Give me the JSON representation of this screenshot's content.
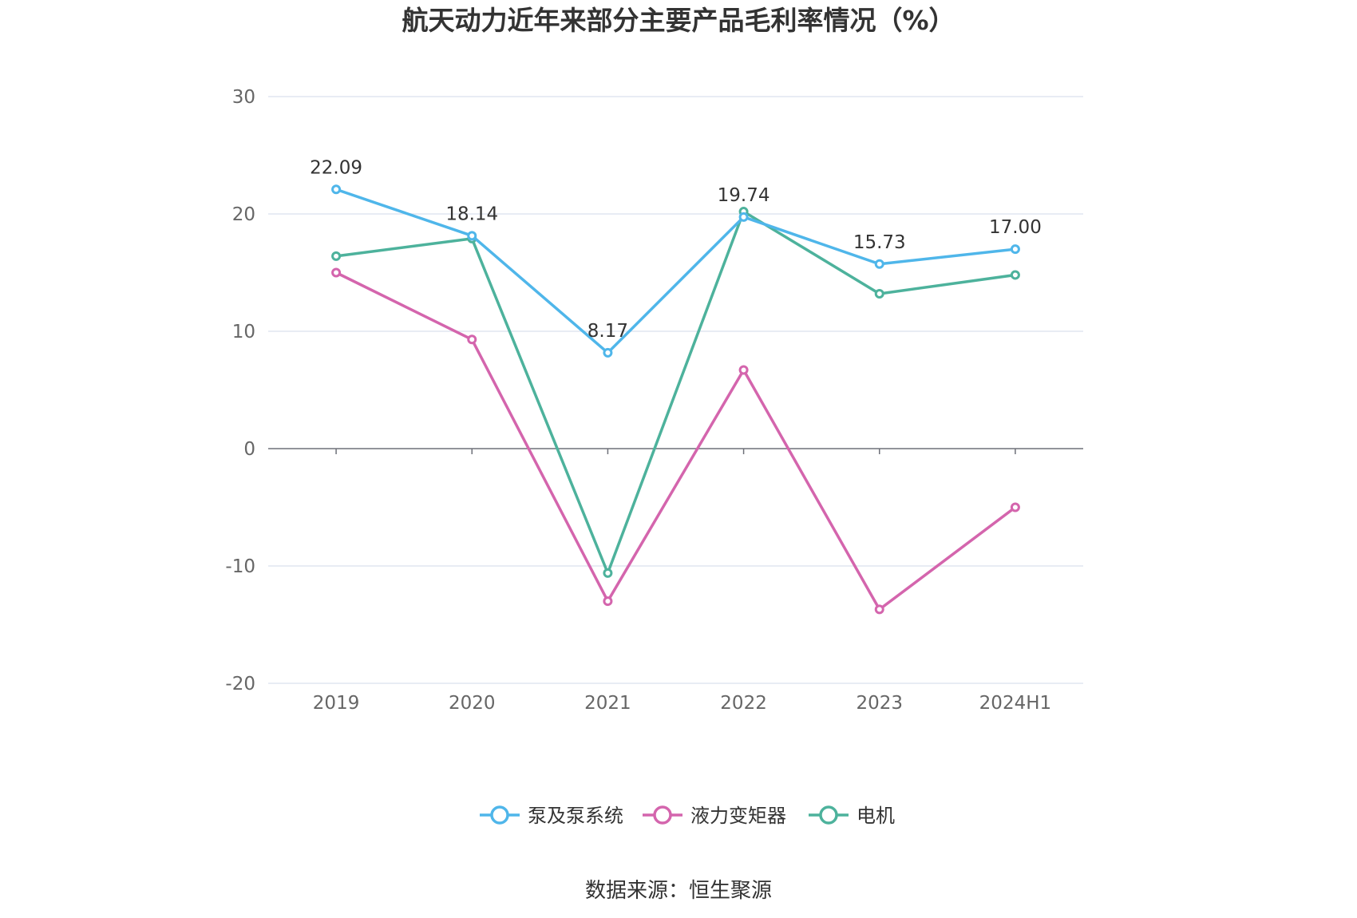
{
  "chart_data": {
    "type": "line",
    "title": "航天动力近年来部分主要产品毛利率情况（%）",
    "categories": [
      "2019",
      "2020",
      "2021",
      "2022",
      "2023",
      "2024H1"
    ],
    "ylim": [
      -20,
      30
    ],
    "yticks": [
      30,
      20,
      10,
      0,
      -10,
      -20
    ],
    "grid": true,
    "legend_position": "bottom-center",
    "series": [
      {
        "name": "泵及泵系统",
        "color": "#4fb6ea",
        "values": [
          22.09,
          18.14,
          8.17,
          19.74,
          15.73,
          17.0
        ],
        "labels": [
          "22.09",
          "18.14",
          "8.17",
          "19.74",
          "15.73",
          "17.00"
        ]
      },
      {
        "name": "液力变矩器",
        "color": "#d465ad",
        "values": [
          15.0,
          9.3,
          -13.0,
          6.7,
          -13.7,
          -5.0
        ]
      },
      {
        "name": "电机",
        "color": "#4db29c",
        "values": [
          16.4,
          17.9,
          -10.6,
          20.2,
          13.2,
          14.8
        ]
      }
    ],
    "source": "数据来源：恒生聚源"
  }
}
